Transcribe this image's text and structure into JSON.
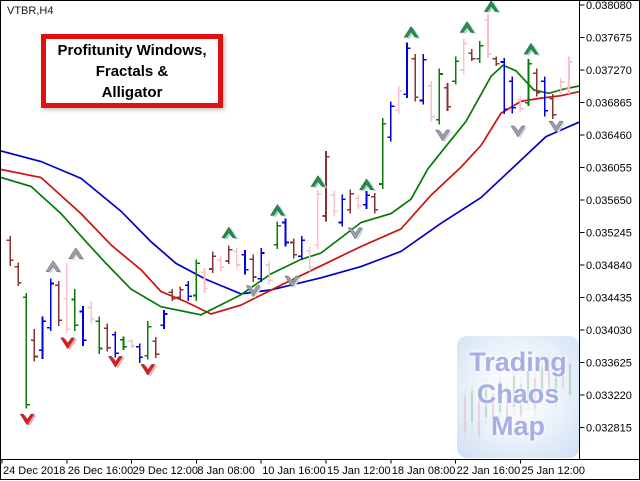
{
  "window": {
    "symbol_label": "VTBR,H4"
  },
  "annotation_box": {
    "lines": [
      "Profitunity Windows,",
      "Fractals &",
      "Alligator"
    ],
    "border_color": "#e01010",
    "text_color": "#000000"
  },
  "watermark": {
    "lines": [
      "Trading",
      "Chaos",
      "Map"
    ],
    "text_color": "#a6aee6"
  },
  "chart_data": {
    "type": "ohlc-bar",
    "title": "VTBR,H4 with Profitunity Windows, Fractals & Alligator",
    "grid": false,
    "price_axis": {
      "side": "right",
      "max": 0.03808,
      "min": 0.032815,
      "tick_step": 0.000405,
      "labels": [
        "0.038080",
        "0.037675",
        "0.037270",
        "0.036865",
        "0.036460",
        "0.036055",
        "0.035650",
        "0.035245",
        "0.034840",
        "0.034435",
        "0.034030",
        "0.033625",
        "0.033220",
        "0.032815"
      ]
    },
    "time_axis": {
      "labels": [
        "24 Dec 2018",
        "26 Dec 16:00",
        "29 Dec 12:00",
        "8 Jan 08:00",
        "10 Jan 16:00",
        "15 Jan 12:00",
        "18 Jan 08:00",
        "22 Jan 16:00",
        "25 Jan 12:00"
      ]
    },
    "bar_colors": {
      "m": "#8b3232",
      "b": "#0000e0",
      "g": "#0b7a0b",
      "p": "#fcc0cc"
    },
    "bars": [
      [
        "m",
        0.0352,
        0.03483,
        0.03515,
        0.0349
      ],
      [
        "m",
        0.03487,
        0.03458,
        0.03482,
        0.03462
      ],
      [
        "g",
        0.03449,
        0.03305,
        0.03444,
        0.0331
      ],
      [
        "m",
        0.03404,
        0.03364,
        0.0339,
        0.0337
      ],
      [
        "b",
        0.0342,
        0.03367,
        0.03378,
        0.03414
      ],
      [
        "b",
        0.03467,
        0.03402,
        0.03406,
        0.03461
      ],
      [
        "m",
        0.03464,
        0.03408,
        0.03459,
        0.03415
      ],
      [
        "p",
        0.03487,
        0.03399,
        0.03442,
        0.03404
      ],
      [
        "g",
        0.03454,
        0.03402,
        0.03441,
        0.03409
      ],
      [
        "b",
        0.03433,
        0.03383,
        0.03426,
        0.0339
      ],
      [
        "p",
        0.03439,
        0.03411,
        0.03431,
        0.03417
      ],
      [
        "g",
        0.0342,
        0.03373,
        0.03414,
        0.0338
      ],
      [
        "m",
        0.03411,
        0.03376,
        0.03405,
        0.03381
      ],
      [
        "b",
        0.03401,
        0.03369,
        0.03397,
        0.03374
      ],
      [
        "g",
        0.03395,
        0.03378,
        0.03391,
        0.03382
      ],
      [
        "p",
        0.03392,
        0.0338,
        0.03389,
        0.03383
      ],
      [
        "b",
        0.03386,
        0.03362,
        0.03382,
        0.03369
      ],
      [
        "g",
        0.03414,
        0.03366,
        0.03371,
        0.03407
      ],
      [
        "m",
        0.03394,
        0.03368,
        0.03389,
        0.03373
      ],
      [
        "b",
        0.03428,
        0.03404,
        0.03409,
        0.03423
      ],
      [
        "m",
        0.03454,
        0.03439,
        0.0345,
        0.03442
      ],
      [
        "m",
        0.03457,
        0.03441,
        0.03444,
        0.03453
      ],
      [
        "b",
        0.03464,
        0.03439,
        0.03459,
        0.03445
      ],
      [
        "g",
        0.03491,
        0.03439,
        0.03446,
        0.03486
      ],
      [
        "p",
        0.0348,
        0.03449,
        0.03475,
        0.03455
      ],
      [
        "m",
        0.03501,
        0.03474,
        0.03479,
        0.03495
      ],
      [
        "p",
        0.03495,
        0.03476,
        0.0349,
        0.03481
      ],
      [
        "m",
        0.03508,
        0.03485,
        0.03489,
        0.03503
      ],
      [
        "p",
        0.03505,
        0.03479,
        0.03501,
        0.03484
      ],
      [
        "b",
        0.03503,
        0.03472,
        0.03497,
        0.03478
      ],
      [
        "m",
        0.03497,
        0.03463,
        0.03491,
        0.03469
      ],
      [
        "b",
        0.03505,
        0.03463,
        0.03467,
        0.03499
      ],
      [
        "p",
        0.03489,
        0.0346,
        0.03484,
        0.03465
      ],
      [
        "g",
        0.03538,
        0.03504,
        0.03509,
        0.03533
      ],
      [
        "b",
        0.03542,
        0.03507,
        0.03537,
        0.03512
      ],
      [
        "m",
        0.03517,
        0.03492,
        0.03512,
        0.03497
      ],
      [
        "b",
        0.0352,
        0.03491,
        0.03495,
        0.03515
      ],
      [
        "p",
        0.03507,
        0.03476,
        0.03502,
        0.03481
      ],
      [
        "p",
        0.03578,
        0.03504,
        0.03509,
        0.03573
      ],
      [
        "m",
        0.03626,
        0.03538,
        0.03545,
        0.03619
      ],
      [
        "p",
        0.03576,
        0.03545,
        0.03571,
        0.03551
      ],
      [
        "b",
        0.03572,
        0.03532,
        0.03537,
        0.03566
      ],
      [
        "m",
        0.03578,
        0.03548,
        0.03553,
        0.03573
      ],
      [
        "p",
        0.03572,
        0.03554,
        0.03567,
        0.03558
      ],
      [
        "b",
        0.03576,
        0.03554,
        0.03559,
        0.03571
      ],
      [
        "m",
        0.03574,
        0.03548,
        0.03569,
        0.03553
      ],
      [
        "g",
        0.03667,
        0.03579,
        0.03585,
        0.0366
      ],
      [
        "b",
        0.03688,
        0.03638,
        0.03643,
        0.03682
      ],
      [
        "p",
        0.03707,
        0.03672,
        0.03677,
        0.03701
      ],
      [
        "b",
        0.03761,
        0.03692,
        0.03697,
        0.03754
      ],
      [
        "m",
        0.03747,
        0.03688,
        0.03741,
        0.03693
      ],
      [
        "b",
        0.03747,
        0.03684,
        0.03689,
        0.0374
      ],
      [
        "p",
        0.03713,
        0.03663,
        0.03707,
        0.03669
      ],
      [
        "g",
        0.03729,
        0.03659,
        0.03665,
        0.03722
      ],
      [
        "m",
        0.03711,
        0.03676,
        0.03705,
        0.03681
      ],
      [
        "g",
        0.03744,
        0.03709,
        0.03713,
        0.03738
      ],
      [
        "p",
        0.03766,
        0.03722,
        0.03727,
        0.0376
      ],
      [
        "m",
        0.03753,
        0.03738,
        0.03748,
        0.03741
      ],
      [
        "g",
        0.03763,
        0.03736,
        0.03741,
        0.03757
      ],
      [
        "p",
        0.03797,
        0.03742,
        0.03789,
        0.03747
      ],
      [
        "m",
        0.03744,
        0.03732,
        0.03741,
        0.03735
      ],
      [
        "b",
        0.03742,
        0.03672,
        0.03737,
        0.03678
      ],
      [
        "b",
        0.03719,
        0.03673,
        0.03713,
        0.0368
      ],
      [
        "p",
        0.03695,
        0.03674,
        0.0369,
        0.03679
      ],
      [
        "g",
        0.03741,
        0.03682,
        0.03686,
        0.03735
      ],
      [
        "m",
        0.03729,
        0.03694,
        0.03723,
        0.03699
      ],
      [
        "b",
        0.03719,
        0.03669,
        0.03713,
        0.03676
      ],
      [
        "m",
        0.03697,
        0.03666,
        0.03691,
        0.03671
      ],
      [
        "p",
        0.03717,
        0.03697,
        0.037,
        0.03712
      ],
      [
        "p",
        0.03744,
        0.03697,
        0.03703,
        0.03737
      ]
    ],
    "alligator": {
      "jaw": {
        "color": "#0000c8",
        "points": [
          [
            0,
            0.03626
          ],
          [
            40,
            0.03613
          ],
          [
            80,
            0.03592
          ],
          [
            120,
            0.03551
          ],
          [
            150,
            0.03513
          ],
          [
            175,
            0.03486
          ],
          [
            205,
            0.03466
          ],
          [
            240,
            0.03448
          ],
          [
            270,
            0.03453
          ],
          [
            320,
            0.03468
          ],
          [
            360,
            0.03482
          ],
          [
            400,
            0.03501
          ],
          [
            440,
            0.03536
          ],
          [
            480,
            0.03568
          ],
          [
            510,
            0.03603
          ],
          [
            545,
            0.03644
          ],
          [
            578,
            0.03662
          ]
        ]
      },
      "teeth": {
        "color": "#cc1111",
        "points": [
          [
            0,
            0.03603
          ],
          [
            40,
            0.03593
          ],
          [
            80,
            0.03548
          ],
          [
            110,
            0.03509
          ],
          [
            140,
            0.03478
          ],
          [
            160,
            0.03451
          ],
          [
            185,
            0.03438
          ],
          [
            210,
            0.03423
          ],
          [
            240,
            0.03434
          ],
          [
            280,
            0.03459
          ],
          [
            320,
            0.03483
          ],
          [
            360,
            0.03507
          ],
          [
            400,
            0.03529
          ],
          [
            430,
            0.03571
          ],
          [
            460,
            0.03606
          ],
          [
            480,
            0.03633
          ],
          [
            500,
            0.03673
          ],
          [
            520,
            0.03688
          ],
          [
            540,
            0.03692
          ],
          [
            560,
            0.03695
          ],
          [
            578,
            0.037
          ]
        ]
      },
      "lips": {
        "color": "#067806",
        "points": [
          [
            0,
            0.03593
          ],
          [
            30,
            0.03582
          ],
          [
            60,
            0.03548
          ],
          [
            85,
            0.03513
          ],
          [
            105,
            0.03486
          ],
          [
            130,
            0.03454
          ],
          [
            160,
            0.03432
          ],
          [
            200,
            0.03422
          ],
          [
            240,
            0.03447
          ],
          [
            270,
            0.03473
          ],
          [
            300,
            0.03491
          ],
          [
            320,
            0.03499
          ],
          [
            360,
            0.03537
          ],
          [
            390,
            0.03548
          ],
          [
            410,
            0.03566
          ],
          [
            427,
            0.03604
          ],
          [
            445,
            0.03632
          ],
          [
            465,
            0.03663
          ],
          [
            478,
            0.03692
          ],
          [
            490,
            0.03719
          ],
          [
            502,
            0.03733
          ],
          [
            515,
            0.03726
          ],
          [
            533,
            0.03702
          ],
          [
            548,
            0.03698
          ],
          [
            562,
            0.03703
          ],
          [
            578,
            0.03707
          ]
        ]
      }
    },
    "fractals": {
      "up_green": {
        "color": "#1e9148",
        "shadow": "#9fd6cf",
        "points": [
          [
            28,
            0.03524
          ],
          [
            34,
            0.03552
          ],
          [
            39,
            0.03588
          ],
          [
            45,
            0.03584
          ],
          [
            50.5,
            0.03774
          ],
          [
            57.4,
            0.0378
          ],
          [
            60.4,
            0.03806
          ],
          [
            65.3,
            0.03753
          ]
        ]
      },
      "down_red": {
        "color": "#e31b1b",
        "shadow": "#f5a9a9",
        "points": [
          [
            3.1,
            0.03292
          ],
          [
            8.1,
            0.03387
          ],
          [
            14,
            0.03364
          ],
          [
            18,
            0.03354
          ]
        ]
      },
      "up_gray": {
        "color": "#9aa1ab",
        "shadow": "#d4d9df",
        "points": [
          [
            6.3,
            0.03482
          ],
          [
            9.1,
            0.03498
          ]
        ]
      },
      "down_gray": {
        "color": "#9aa1ab",
        "shadow": "#d4d9df",
        "points": [
          [
            31,
            0.03452
          ],
          [
            35.8,
            0.03464
          ],
          [
            43.6,
            0.03524
          ],
          [
            54.4,
            0.03646
          ],
          [
            63.7,
            0.03651
          ],
          [
            68.4,
            0.03657
          ]
        ]
      }
    }
  }
}
